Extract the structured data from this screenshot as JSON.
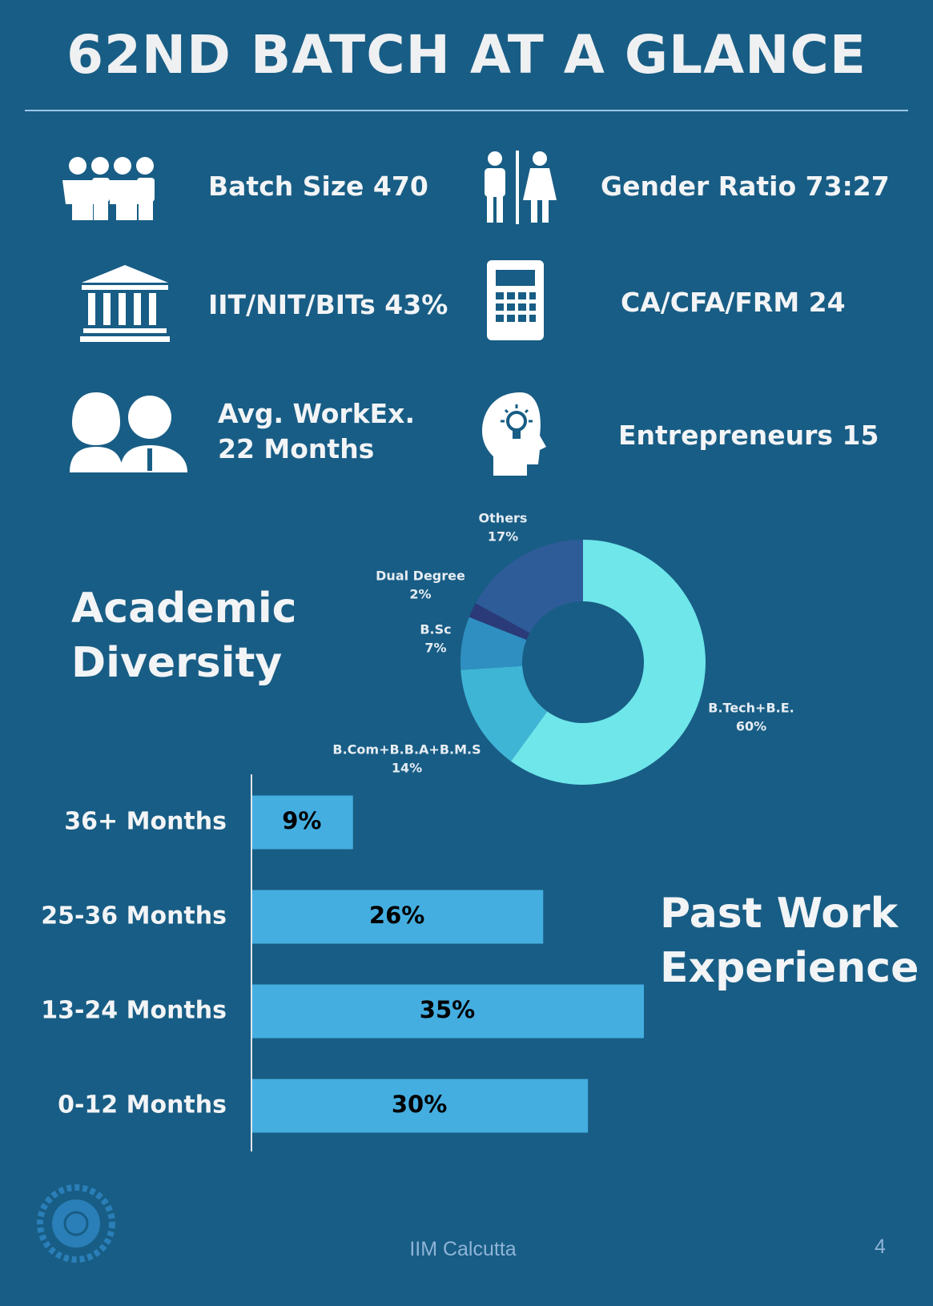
{
  "header": {
    "title": "62ND BATCH AT A GLANCE"
  },
  "stats": {
    "batch_size": "Batch Size 470",
    "gender_ratio": "Gender Ratio 73:27",
    "iit_nit_bits": "IIT/NIT/BITs 43%",
    "ca_cfa_frm": "CA/CFA/FRM 24",
    "avg_workex": [
      "Avg. WorkEx.",
      "22 Months"
    ],
    "entrepreneurs": "Entrepreneurs 15"
  },
  "chart_data": [
    {
      "type": "pie",
      "donut": true,
      "title": "Academic Diversity",
      "categories": [
        "B.Tech+B.E.",
        "B.Com+B.B.A+B.M.S",
        "B.Sc",
        "Dual Degree",
        "Others"
      ],
      "values": [
        60,
        14,
        7,
        2,
        17
      ],
      "value_labels": [
        "60%",
        "14%",
        "7%",
        "2%",
        "17%"
      ],
      "colors": [
        "#6ee6ea",
        "#3fb5d6",
        "#2e8fc0",
        "#2b3a78",
        "#2e5c99"
      ]
    },
    {
      "type": "bar",
      "orientation": "horizontal",
      "title": "Past Work Experience",
      "categories": [
        "36+ Months",
        "25-36 Months",
        "13-24 Months",
        "0-12 Months"
      ],
      "values": [
        9,
        26,
        35,
        30
      ],
      "value_labels": [
        "9%",
        "26%",
        "35%",
        "30%"
      ],
      "color": "#45aee0"
    }
  ],
  "footer": {
    "text": "IIM Calcutta",
    "page_number": 4
  }
}
